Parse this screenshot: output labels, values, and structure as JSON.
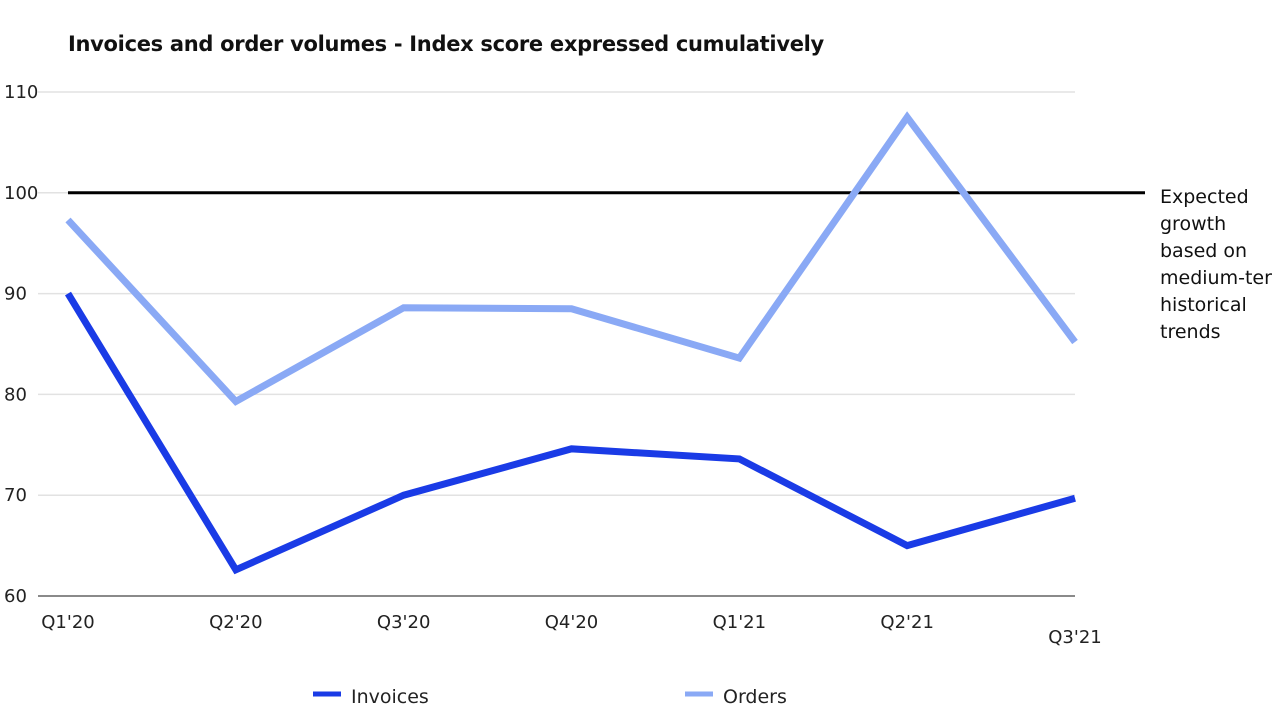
{
  "chart_data": {
    "type": "line",
    "title": "Invoices and order volumes - Index score expressed cumulatively",
    "categories": [
      "Q1'20",
      "Q2'20",
      "Q3'20",
      "Q4'20",
      "Q1'21",
      "Q2'21",
      "Q3'21"
    ],
    "series": [
      {
        "name": "Invoices",
        "values": [
          90,
          62.6,
          70,
          74.6,
          73.6,
          65,
          69.7
        ],
        "color": "#1a3be6"
      },
      {
        "name": "Orders",
        "values": [
          97.3,
          79.3,
          88.6,
          88.5,
          83.6,
          107.5,
          85.2
        ],
        "color": "#8aa9f5"
      }
    ],
    "yticks": [
      60,
      70,
      80,
      90,
      100,
      110
    ],
    "ylim": [
      60,
      110
    ],
    "reference_line": {
      "value": 100,
      "color": "#000000",
      "label_lines": [
        "Expected",
        "growth",
        "based on",
        "medium-ter",
        "historical",
        "trends"
      ]
    },
    "grid": true,
    "legend": "bottom"
  }
}
